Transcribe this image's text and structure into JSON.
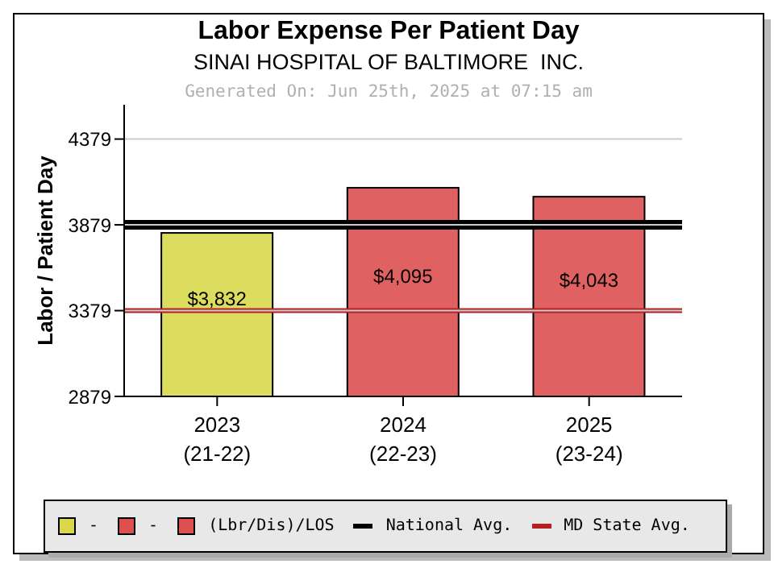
{
  "chart_data": {
    "type": "bar",
    "title": "Labor Expense Per Patient Day",
    "subtitle": "SINAI HOSPITAL OF BALTIMORE  INC.",
    "annotations": [
      "Generated On: Jun 25th, 2025 at 07:15 am"
    ],
    "ylabel": "Labor / Patient Day",
    "categories": [
      "2023\n(21-22)",
      "2024\n(22-23)",
      "2025\n(23-24)"
    ],
    "stacked": true,
    "series": [
      {
        "name": "-",
        "color": "#d8d84c",
        "values": [
          3832,
          null,
          null
        ],
        "value_labels": [
          "$3,832",
          null,
          null
        ]
      },
      {
        "name": "-",
        "color": "#dc5050",
        "values": [
          null,
          4095,
          null
        ],
        "value_labels": [
          null,
          "$4,095",
          null
        ]
      },
      {
        "name": "(Lbr/Dis)/LOS",
        "color": "#dc5050",
        "values": [
          null,
          null,
          4043
        ],
        "value_labels": [
          null,
          null,
          "$4,043"
        ]
      }
    ],
    "ylim": [
      2879,
      4579
    ],
    "yticks": [
      2879,
      3379,
      3879,
      4379
    ],
    "ref_lines": [
      {
        "axis": "y",
        "value": 3879,
        "label": "National Avg.",
        "color": "#000000"
      },
      {
        "axis": "y",
        "value": 3379,
        "label": "MD State Avg.",
        "color": "#b22222"
      }
    ],
    "grid": "y",
    "legend": "bottom"
  }
}
